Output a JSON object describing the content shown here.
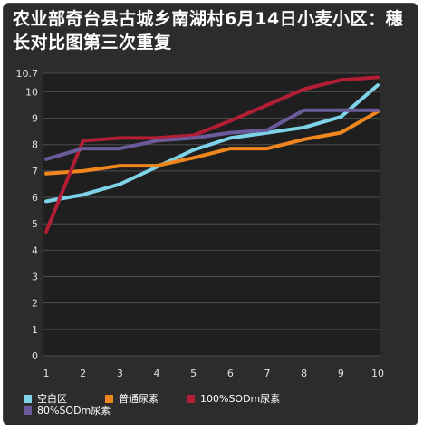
{
  "chart_data": {
    "type": "line",
    "title": "农业部奇台县古城乡南湖村6月14日小麦小区：穗长对比图第三次重复",
    "categories": [
      "1",
      "2",
      "3",
      "4",
      "5",
      "6",
      "7",
      "8",
      "9",
      "10"
    ],
    "y_ticks": [
      "0",
      "1",
      "2",
      "3",
      "4",
      "5",
      "6",
      "7",
      "8",
      "9",
      "10",
      "10.7"
    ],
    "ylim": [
      0,
      10.7
    ],
    "grid": true,
    "legend_position": "bottom",
    "series": [
      {
        "name": "空白区",
        "color": "#7fd3e8",
        "values": [
          5.85,
          6.1,
          6.5,
          7.15,
          7.8,
          8.25,
          8.45,
          8.65,
          9.05,
          10.25
        ]
      },
      {
        "name": "普通尿素",
        "color": "#f0861e",
        "values": [
          6.9,
          7.0,
          7.2,
          7.2,
          7.5,
          7.85,
          7.85,
          8.2,
          8.45,
          9.25
        ]
      },
      {
        "name": "100%SODm尿素",
        "color": "#b21e35",
        "values": [
          4.7,
          8.15,
          8.25,
          8.25,
          8.35,
          8.9,
          9.5,
          10.1,
          10.45,
          10.55
        ]
      },
      {
        "name": "80%SODm尿素",
        "color": "#6b5b9a",
        "values": [
          7.45,
          7.85,
          7.85,
          8.15,
          8.25,
          8.45,
          8.55,
          9.3,
          9.3,
          9.3
        ]
      }
    ]
  }
}
